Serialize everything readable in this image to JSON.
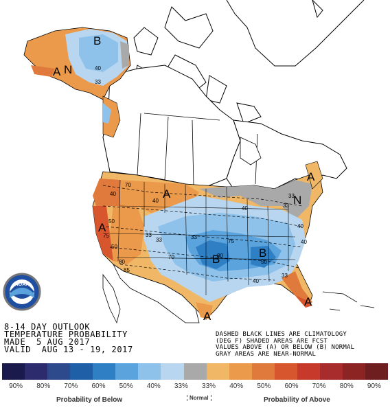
{
  "outlook": {
    "line1": "8-14 DAY OUTLOOK",
    "line2": "TEMPERATURE PROBABILITY",
    "line3": "MADE  5 AUG 2017",
    "line4": "VALID  AUG 13 - 19, 2017"
  },
  "note": {
    "line1": "DASHED BLACK LINES ARE CLIMATOLOGY",
    "line2": "(DEG F) SHADED AREAS ARE FCST",
    "line3": "VALUES ABOVE (A) OR BELOW (B) NORMAL",
    "line4": "GRAY AREAS ARE NEAR-NORMAL"
  },
  "logo": {
    "text": "NOAA"
  },
  "legend": {
    "swatch_colors": [
      "#1a1a4d",
      "#2b2b6e",
      "#2c4a8c",
      "#1f5fa8",
      "#2f7fc4",
      "#5aa3dd",
      "#8ec2ea",
      "#b8d6f0",
      "#a9a9a9",
      "#f0b866",
      "#eb9a4b",
      "#e07a3c",
      "#d8562e",
      "#c73a2b",
      "#a92c2c",
      "#8c2424",
      "#6e1e1e"
    ],
    "labels": [
      "90%",
      "80%",
      "70%",
      "60%",
      "50%",
      "40%",
      "33%",
      "33%",
      "40%",
      "50%",
      "60%",
      "70%",
      "80%",
      "90%"
    ],
    "below_caption": "Probability of Below",
    "normal_caption": "Normal",
    "above_caption": "Probability of Above"
  },
  "colors": {
    "above_33": "#f0b866",
    "above_40": "#eb9a4b",
    "above_50": "#e07a3c",
    "above_60": "#d8562e",
    "below_33": "#b8d6f0",
    "below_40": "#8ec2ea",
    "below_50": "#5aa3dd",
    "below_60": "#2f7fc4",
    "normal": "#a9a9a9"
  },
  "map": {
    "labels": [
      {
        "text": "A"
      },
      {
        "text": "N"
      },
      {
        "text": "B"
      },
      {
        "text": "A"
      },
      {
        "text": "A"
      },
      {
        "text": "N"
      },
      {
        "text": "A"
      },
      {
        "text": "B"
      },
      {
        "text": "B"
      },
      {
        "text": "A"
      },
      {
        "text": "A"
      }
    ],
    "contour_values": [
      "40",
      "33",
      "50",
      "40",
      "70",
      "40",
      "50",
      "33",
      "33",
      "75",
      "80",
      "85",
      "70",
      "75",
      "80",
      "50",
      "40",
      "33",
      "40",
      "33",
      "33",
      "40",
      "33",
      "40"
    ]
  }
}
